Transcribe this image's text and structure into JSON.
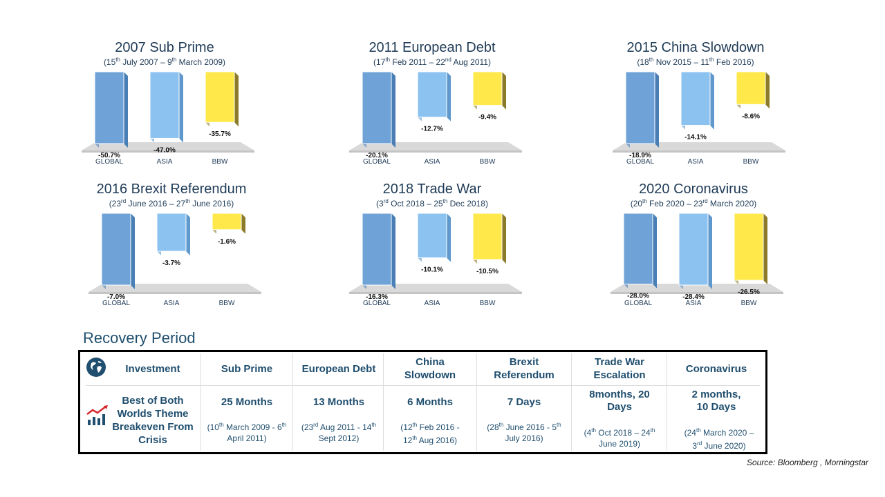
{
  "charts": [
    {
      "title": "2007 Sub Prime",
      "sub": {
        "a": "(15",
        "as": "th",
        "b": " July 2007 – 9",
        "bs": "th",
        "c": " March 2009)"
      },
      "categories": [
        "GLOBAL",
        "ASIA",
        "BBW"
      ],
      "values": [
        -50.7,
        -47.0,
        -35.7
      ],
      "labels": [
        "-50.7%",
        "-47.0%",
        "-35.7%"
      ]
    },
    {
      "title": "2011 European Debt",
      "sub": {
        "a": "(17",
        "as": "th",
        "b": " Feb 2011 – 22",
        "bs": "nd",
        "c": " Aug 2011)"
      },
      "categories": [
        "GLOBAL",
        "ASIA",
        "BBW"
      ],
      "values": [
        -20.1,
        -12.7,
        -9.4
      ],
      "labels": [
        "-20.1%",
        "-12.7%",
        "-9.4%"
      ]
    },
    {
      "title": "2015 China Slowdown",
      "sub": {
        "a": "(18",
        "as": "th",
        "b": " Nov 2015 – 11",
        "bs": "th",
        "c": " Feb 2016)"
      },
      "categories": [
        "GLOBAL",
        "ASIA",
        "BBW"
      ],
      "values": [
        -18.9,
        -14.1,
        -8.6
      ],
      "labels": [
        "-18.9%",
        "-14.1%",
        "-8.6%"
      ]
    },
    {
      "title": "2016 Brexit Referendum",
      "sub": {
        "a": "(23",
        "as": "rd",
        "b": " June 2016 – 27",
        "bs": "th",
        "c": " June 2016)"
      },
      "categories": [
        "GLOBAL",
        "ASIA",
        "BBW"
      ],
      "values": [
        -7.0,
        -3.7,
        -1.6
      ],
      "labels": [
        "-7.0%",
        "-3.7%",
        "-1.6%"
      ]
    },
    {
      "title": "2018 Trade War",
      "sub": {
        "a": "(3",
        "as": "rd",
        "b": " Oct 2018 – 25",
        "bs": "th",
        "c": " Dec 2018)"
      },
      "categories": [
        "GLOBAL",
        "ASIA",
        "BBW"
      ],
      "values": [
        -16.3,
        -10.1,
        -10.5
      ],
      "labels": [
        "-16.3%",
        "-10.1%",
        "-10.5%"
      ]
    },
    {
      "title": "2020 Coronavirus",
      "sub": {
        "a": "(20",
        "as": "th",
        "b": " Feb 2020 – 23",
        "bs": "rd",
        "c": " March 2020)"
      },
      "categories": [
        "GLOBAL",
        "ASIA",
        "BBW"
      ],
      "values": [
        -28.0,
        -28.4,
        -26.5
      ],
      "labels": [
        "-28.0%",
        "-28.4%",
        "-26.5%"
      ]
    }
  ],
  "chart_data": [
    {
      "type": "bar",
      "title": "2007 Sub Prime",
      "subtitle": "(15th July 2007 – 9th March 2009)",
      "categories": [
        "GLOBAL",
        "ASIA",
        "BBW"
      ],
      "values": [
        -50.7,
        -47.0,
        -35.7
      ]
    },
    {
      "type": "bar",
      "title": "2011 European Debt",
      "subtitle": "(17th Feb 2011 – 22nd Aug 2011)",
      "categories": [
        "GLOBAL",
        "ASIA",
        "BBW"
      ],
      "values": [
        -20.1,
        -12.7,
        -9.4
      ]
    },
    {
      "type": "bar",
      "title": "2015 China Slowdown",
      "subtitle": "(18th Nov 2015 – 11th Feb 2016)",
      "categories": [
        "GLOBAL",
        "ASIA",
        "BBW"
      ],
      "values": [
        -18.9,
        -14.1,
        -8.6
      ]
    },
    {
      "type": "bar",
      "title": "2016 Brexit Referendum",
      "subtitle": "(23rd June 2016 – 27th June 2016)",
      "categories": [
        "GLOBAL",
        "ASIA",
        "BBW"
      ],
      "values": [
        -7.0,
        -3.7,
        -1.6
      ]
    },
    {
      "type": "bar",
      "title": "2018 Trade War",
      "subtitle": "(3rd Oct 2018 – 25th Dec 2018)",
      "categories": [
        "GLOBAL",
        "ASIA",
        "BBW"
      ],
      "values": [
        -16.3,
        -10.1,
        -10.5
      ]
    },
    {
      "type": "bar",
      "title": "2020 Coronavirus",
      "subtitle": "(20th Feb 2020 – 23rd March 2020)",
      "categories": [
        "GLOBAL",
        "ASIA",
        "BBW"
      ],
      "values": [
        -28.0,
        -28.4,
        -26.5
      ]
    }
  ],
  "colors": {
    "global": "#6fa3d8",
    "asia": "#8cc2f0",
    "bbw": "#ffe94a",
    "floor": "#d9d9d9"
  },
  "recovery": {
    "title": "Recovery Period",
    "investment_label": "Investment",
    "row_label": "Best of Both Worlds Theme Breakeven From Crisis",
    "icons": {
      "header": "globe-icon",
      "row": "trend-chart-icon"
    },
    "columns": [
      {
        "header": "Sub Prime",
        "value": "25 Months",
        "range": {
          "a": "(10",
          "as": "th",
          "b": " March 2009 - 6",
          "bs": "th",
          "c": " April 2011)"
        }
      },
      {
        "header": "European Debt",
        "value": "13 Months",
        "range": {
          "a": "(23",
          "as": "rd",
          "b": " Aug 2011 - 14",
          "bs": "th",
          "c": " Sept 2012)"
        }
      },
      {
        "header": "China Slowdown",
        "value": "6 Months",
        "range": {
          "a": "(12",
          "as": "th",
          "b": " Feb 2016 - 12",
          "bs": "th",
          "c": " Aug 2016)"
        }
      },
      {
        "header": "Brexit Referendum",
        "value": "7 Days",
        "range": {
          "a": "(28",
          "as": "th",
          "b": " June 2016 - 5",
          "bs": "th",
          "c": " July 2016)"
        }
      },
      {
        "header": "Trade War Escalation",
        "value": "8months, 20 Days",
        "range": {
          "a": "(4",
          "as": "th",
          "b": " Oct 2018 – 24",
          "bs": "th",
          "c": " June 2019)"
        }
      },
      {
        "header": "Coronavirus",
        "value": "2 months, 10 Days",
        "range": {
          "a": "(24",
          "as": "th",
          "b": " March 2020 – 3",
          "bs": "rd",
          "c": " June 2020)"
        }
      }
    ]
  },
  "source": "Source: Bloomberg , Morningstar"
}
